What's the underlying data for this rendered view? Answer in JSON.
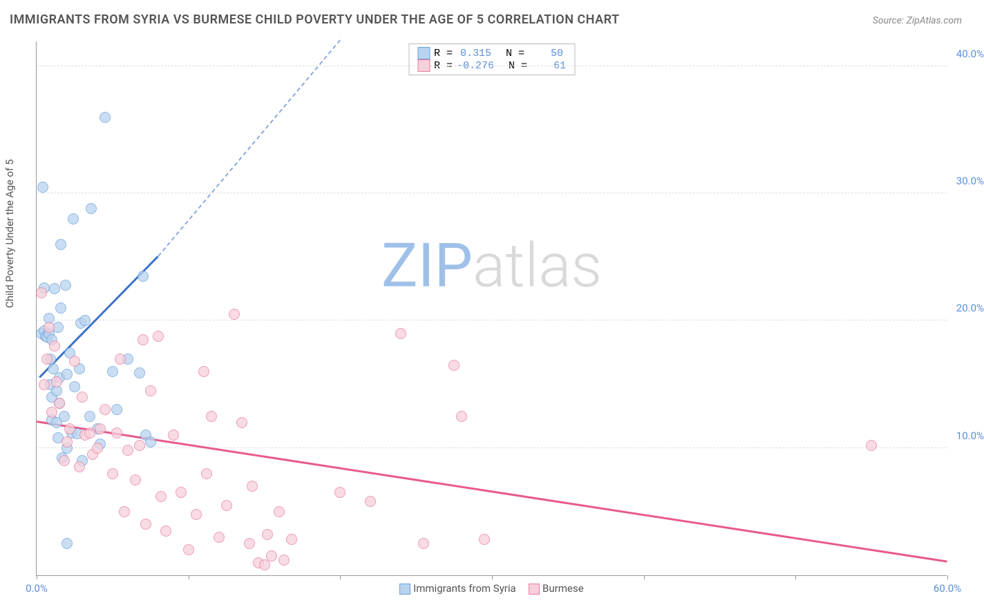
{
  "title": "IMMIGRANTS FROM SYRIA VS BURMESE CHILD POVERTY UNDER THE AGE OF 5 CORRELATION CHART",
  "source_label": "Source: ZipAtlas.com",
  "y_axis_label": "Child Poverty Under the Age of 5",
  "watermark_a": "ZIP",
  "watermark_b": "atlas",
  "watermark_color_a": "#9fc0e8",
  "watermark_color_b": "#d9d9d9",
  "chart": {
    "type": "scatter",
    "xlim": [
      0,
      60
    ],
    "ylim": [
      0,
      42
    ],
    "x_ticks": [
      0,
      10,
      20,
      30,
      40,
      50,
      60
    ],
    "y_ticks": [
      10,
      20,
      30,
      40
    ],
    "x_tick_labels": [
      "0.0%",
      "",
      "",
      "",
      "",
      "",
      "60.0%"
    ],
    "y_tick_labels": [
      "10.0%",
      "20.0%",
      "30.0%",
      "40.0%"
    ],
    "background_color": "#ffffff",
    "grid_color": "#dddddd",
    "axis_color": "#999999",
    "tick_label_color": "#5b8fd6",
    "marker_size": 16,
    "series": [
      {
        "name": "Immigrants from Syria",
        "fill": "#b9d3ef",
        "stroke": "#6a9ed8",
        "R": "0.315",
        "N": "50",
        "trend": {
          "x1": 0.2,
          "y1": 15.5,
          "x2": 8.0,
          "y2": 25.0,
          "color": "#3d72c8",
          "dash_to_x": 20.0,
          "dash_to_y": 42.0
        },
        "points": [
          [
            0.3,
            19.0
          ],
          [
            0.4,
            30.5
          ],
          [
            0.5,
            19.2
          ],
          [
            0.5,
            22.6
          ],
          [
            0.6,
            18.8
          ],
          [
            0.7,
            18.7
          ],
          [
            0.8,
            19.0
          ],
          [
            0.8,
            20.2
          ],
          [
            0.9,
            17.0
          ],
          [
            0.9,
            15.0
          ],
          [
            1.0,
            12.2
          ],
          [
            1.0,
            14.0
          ],
          [
            1.0,
            18.5
          ],
          [
            1.1,
            16.2
          ],
          [
            1.2,
            22.5
          ],
          [
            1.3,
            12.0
          ],
          [
            1.3,
            14.5
          ],
          [
            1.4,
            10.8
          ],
          [
            1.4,
            19.5
          ],
          [
            1.5,
            13.5
          ],
          [
            1.5,
            15.5
          ],
          [
            1.6,
            21.0
          ],
          [
            1.6,
            26.0
          ],
          [
            1.7,
            9.2
          ],
          [
            1.8,
            12.5
          ],
          [
            1.9,
            22.8
          ],
          [
            2.0,
            10.0
          ],
          [
            2.0,
            2.5
          ],
          [
            2.0,
            15.8
          ],
          [
            2.2,
            17.5
          ],
          [
            2.3,
            11.2
          ],
          [
            2.4,
            28.0
          ],
          [
            2.5,
            14.8
          ],
          [
            2.7,
            11.1
          ],
          [
            2.8,
            16.2
          ],
          [
            2.9,
            19.8
          ],
          [
            3.0,
            9.0
          ],
          [
            3.2,
            20.0
          ],
          [
            3.5,
            12.5
          ],
          [
            3.6,
            28.8
          ],
          [
            4.0,
            11.5
          ],
          [
            4.2,
            10.3
          ],
          [
            4.5,
            36.0
          ],
          [
            5.0,
            16.0
          ],
          [
            5.3,
            13.0
          ],
          [
            6.0,
            17.0
          ],
          [
            6.8,
            15.9
          ],
          [
            7.0,
            23.5
          ],
          [
            7.2,
            11.0
          ],
          [
            7.5,
            10.5
          ]
        ]
      },
      {
        "name": "Burmese",
        "fill": "#f6d0da",
        "stroke": "#e87ca0",
        "R": "-0.276",
        "N": "61",
        "trend": {
          "x1": 0.0,
          "y1": 12.0,
          "x2": 60.0,
          "y2": 1.0,
          "color": "#e85a8a"
        },
        "points": [
          [
            0.3,
            22.2
          ],
          [
            0.5,
            15.0
          ],
          [
            0.7,
            17.0
          ],
          [
            0.8,
            19.5
          ],
          [
            1.0,
            12.8
          ],
          [
            1.2,
            18.0
          ],
          [
            1.3,
            15.2
          ],
          [
            1.5,
            13.5
          ],
          [
            1.8,
            9.0
          ],
          [
            2.0,
            10.5
          ],
          [
            2.2,
            11.5
          ],
          [
            2.5,
            16.8
          ],
          [
            2.8,
            8.5
          ],
          [
            3.0,
            14.0
          ],
          [
            3.2,
            11.0
          ],
          [
            3.5,
            11.2
          ],
          [
            3.7,
            9.5
          ],
          [
            4.0,
            10.0
          ],
          [
            4.2,
            11.5
          ],
          [
            4.5,
            13.0
          ],
          [
            5.0,
            8.0
          ],
          [
            5.3,
            11.2
          ],
          [
            5.5,
            17.0
          ],
          [
            5.8,
            5.0
          ],
          [
            6.0,
            9.8
          ],
          [
            6.5,
            7.5
          ],
          [
            6.8,
            10.2
          ],
          [
            7.0,
            18.5
          ],
          [
            7.2,
            4.0
          ],
          [
            7.5,
            14.5
          ],
          [
            8.0,
            18.8
          ],
          [
            8.2,
            6.2
          ],
          [
            8.5,
            3.5
          ],
          [
            9.0,
            11.0
          ],
          [
            9.5,
            6.5
          ],
          [
            10.0,
            2.0
          ],
          [
            10.5,
            4.8
          ],
          [
            11.0,
            16.0
          ],
          [
            11.2,
            8.0
          ],
          [
            11.5,
            12.5
          ],
          [
            12.0,
            3.0
          ],
          [
            12.5,
            5.5
          ],
          [
            13.0,
            20.5
          ],
          [
            13.5,
            12.0
          ],
          [
            14.0,
            2.5
          ],
          [
            14.2,
            7.0
          ],
          [
            14.6,
            1.0
          ],
          [
            15.0,
            0.8
          ],
          [
            15.2,
            3.2
          ],
          [
            15.5,
            1.5
          ],
          [
            16.0,
            5.0
          ],
          [
            16.3,
            1.2
          ],
          [
            16.8,
            2.8
          ],
          [
            20.0,
            6.5
          ],
          [
            22.0,
            5.8
          ],
          [
            24.0,
            19.0
          ],
          [
            25.5,
            2.5
          ],
          [
            27.5,
            16.5
          ],
          [
            28.0,
            12.5
          ],
          [
            29.5,
            2.8
          ],
          [
            55.0,
            10.2
          ]
        ]
      }
    ]
  },
  "legend": {
    "r_label": "R =",
    "n_label": "N ="
  }
}
